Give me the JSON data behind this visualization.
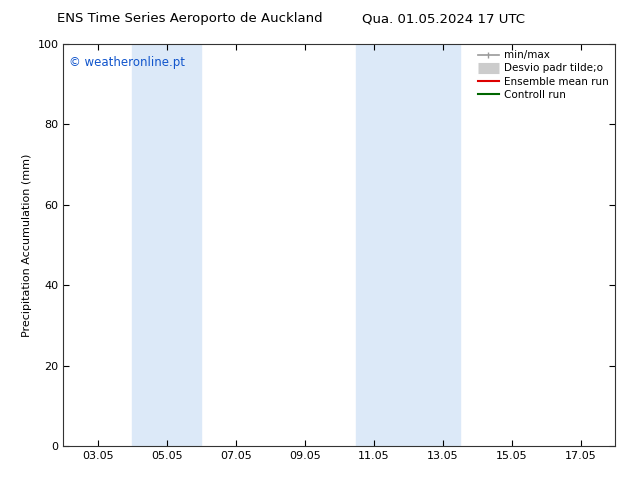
{
  "title_left": "ENS Time Series Aeroporto de Auckland",
  "title_right": "Qua. 01.05.2024 17 UTC",
  "ylabel": "Precipitation Accumulation (mm)",
  "ylim": [
    0,
    100
  ],
  "yticks": [
    0,
    20,
    40,
    60,
    80,
    100
  ],
  "xlabel_ticks": [
    "03.05",
    "05.05",
    "07.05",
    "09.05",
    "11.05",
    "13.05",
    "15.05",
    "17.05"
  ],
  "x_numeric_ticks": [
    3,
    5,
    7,
    9,
    11,
    13,
    15,
    17
  ],
  "xlim": [
    2,
    18
  ],
  "shade_regions": [
    {
      "xmin": 4.0,
      "xmax": 6.0
    },
    {
      "xmin": 10.5,
      "xmax": 13.5
    }
  ],
  "shade_color": "#dce9f8",
  "watermark_text": "© weatheronline.pt",
  "watermark_color": "#1155cc",
  "legend_entries": [
    {
      "label": "min/max",
      "color": "#999999",
      "lw": 1.2
    },
    {
      "label": "Desvio padr tilde;o",
      "color": "#cccccc",
      "lw": 8
    },
    {
      "label": "Ensemble mean run",
      "color": "#dd0000",
      "lw": 1.5
    },
    {
      "label": "Controll run",
      "color": "#006600",
      "lw": 1.5
    }
  ],
  "background_color": "#ffffff",
  "title_fontsize": 9.5,
  "tick_fontsize": 8,
  "ylabel_fontsize": 8,
  "watermark_fontsize": 8.5
}
